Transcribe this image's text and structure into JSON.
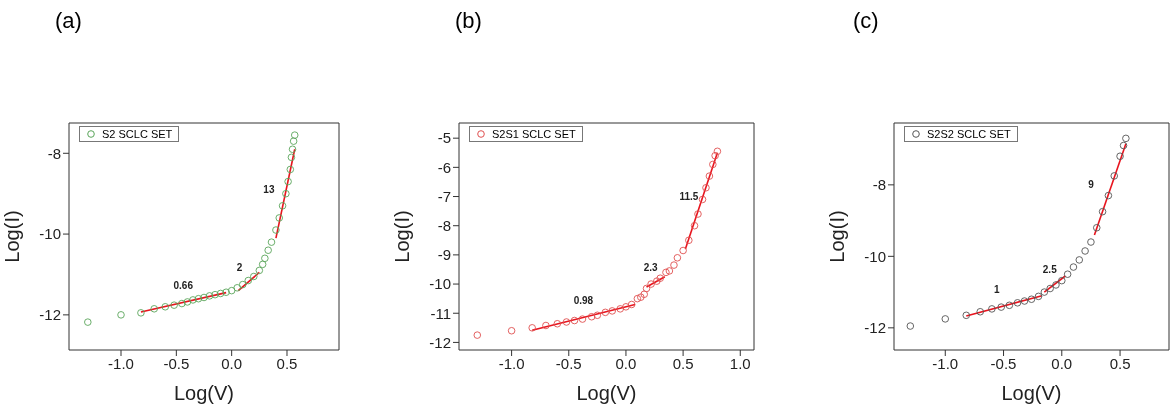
{
  "chart_data": [
    {
      "type": "scatter",
      "title": "(a)",
      "xlabel": "Log(V)",
      "ylabel": "Log(I)",
      "xlim": [
        -1.47,
        0.97
      ],
      "ylim": [
        -12.87,
        -7.25
      ],
      "xticks": [
        {
          "value": -1,
          "label": "-1.0"
        },
        {
          "value": -0.5,
          "label": "-0.5"
        },
        {
          "value": 0,
          "label": "0.0"
        },
        {
          "value": 0.5,
          "label": "0.5"
        }
      ],
      "yticks": [
        -12,
        -10,
        -8
      ],
      "legend": "top left",
      "series": [
        {
          "name": "S2 SCLC SET",
          "marker": "circle",
          "color": "#5aa55a",
          "x": [
            -1.3,
            -1.0,
            -0.82,
            -0.7,
            -0.6,
            -0.52,
            -0.45,
            -0.4,
            -0.35,
            -0.3,
            -0.25,
            -0.2,
            -0.15,
            -0.1,
            -0.05,
            0,
            0.05,
            0.1,
            0.15,
            0.2,
            0.25,
            0.28,
            0.3,
            0.33,
            0.36,
            0.4,
            0.43,
            0.46,
            0.49,
            0.51,
            0.53,
            0.54,
            0.55,
            0.56,
            0.57
          ],
          "values": [
            -12.18,
            -12.0,
            -11.95,
            -11.85,
            -11.8,
            -11.76,
            -11.72,
            -11.68,
            -11.63,
            -11.6,
            -11.57,
            -11.53,
            -11.5,
            -11.47,
            -11.44,
            -11.4,
            -11.33,
            -11.25,
            -11.15,
            -11.05,
            -10.9,
            -10.75,
            -10.6,
            -10.4,
            -10.2,
            -9.9,
            -9.6,
            -9.3,
            -9.0,
            -8.7,
            -8.4,
            -8.1,
            -7.9,
            -7.7,
            -7.55
          ]
        },
        {
          "type": "line",
          "color": "#e8141e",
          "x": [
            -0.82,
            -0.05
          ],
          "values": [
            -11.93,
            -11.45
          ]
        },
        {
          "type": "line",
          "color": "#e8141e",
          "x": [
            0.06,
            0.25
          ],
          "values": [
            -11.4,
            -10.95
          ]
        },
        {
          "type": "line",
          "color": "#e8141e",
          "x": [
            0.4,
            0.57
          ],
          "values": [
            -10.1,
            -7.9
          ]
        }
      ],
      "annotations": [
        "0.66",
        "2",
        "13"
      ]
    },
    {
      "type": "scatter",
      "title": "(b)",
      "xlabel": "Log(V)",
      "ylabel": "Log(I)",
      "xlim": [
        -1.46,
        1.12
      ],
      "ylim": [
        -12.26,
        -4.48
      ],
      "xticks": [
        {
          "value": -1,
          "label": "-1.0"
        },
        {
          "value": -0.5,
          "label": "-0.5"
        },
        {
          "value": 0,
          "label": "0.0"
        },
        {
          "value": 0.5,
          "label": "0.5"
        },
        {
          "value": 1,
          "label": "1.0"
        }
      ],
      "yticks": [
        -12,
        -11,
        -10,
        -9,
        -8,
        -7,
        -6,
        -5
      ],
      "legend": "top left",
      "series": [
        {
          "name": "S2S1 SCLC SET",
          "marker": "circle",
          "color": "#e05050",
          "x": [
            -1.3,
            -1.0,
            -0.82,
            -0.7,
            -0.6,
            -0.52,
            -0.45,
            -0.38,
            -0.3,
            -0.25,
            -0.18,
            -0.12,
            -0.05,
            0,
            0.05,
            0.1,
            0.13,
            0.16,
            0.18,
            0.22,
            0.27,
            0.3,
            0.35,
            0.38,
            0.42,
            0.45,
            0.5,
            0.55,
            0.6,
            0.63,
            0.67,
            0.7,
            0.73,
            0.76,
            0.78,
            0.8
          ],
          "values": [
            -11.75,
            -11.6,
            -11.5,
            -11.42,
            -11.36,
            -11.3,
            -11.25,
            -11.2,
            -11.12,
            -11.07,
            -10.97,
            -10.92,
            -10.85,
            -10.78,
            -10.7,
            -10.5,
            -10.45,
            -10.35,
            -10.15,
            -10.0,
            -9.9,
            -9.8,
            -9.6,
            -9.55,
            -9.35,
            -9.1,
            -8.85,
            -8.5,
            -8.0,
            -7.6,
            -7.1,
            -6.7,
            -6.3,
            -5.9,
            -5.6,
            -5.45
          ]
        },
        {
          "type": "line",
          "color": "#e8141e",
          "x": [
            -0.82,
            0.08
          ],
          "values": [
            -11.58,
            -10.7
          ]
        },
        {
          "type": "line",
          "color": "#e8141e",
          "x": [
            0.18,
            0.34
          ],
          "values": [
            -10.1,
            -9.75
          ]
        },
        {
          "type": "line",
          "color": "#e8141e",
          "x": [
            0.52,
            0.8
          ],
          "values": [
            -8.8,
            -5.5
          ]
        }
      ],
      "annotations": [
        "0.98",
        "2.3",
        "11.5"
      ]
    },
    {
      "type": "scatter",
      "title": "(c)",
      "xlabel": "Log(V)",
      "ylabel": "Log(I)",
      "xlim": [
        -1.44,
        0.92
      ],
      "ylim": [
        -12.62,
        -6.27
      ],
      "xticks": [
        {
          "value": -1,
          "label": "-1.0"
        },
        {
          "value": -0.5,
          "label": "-0.5"
        },
        {
          "value": 0,
          "label": "0.0"
        },
        {
          "value": 0.5,
          "label": "0.5"
        }
      ],
      "yticks": [
        -12,
        -10,
        -8
      ],
      "legend": "top left",
      "series": [
        {
          "name": "S2S2 SCLC SET",
          "marker": "circle",
          "color": "#555555",
          "x": [
            -1.3,
            -1.0,
            -0.82,
            -0.7,
            -0.6,
            -0.52,
            -0.45,
            -0.38,
            -0.32,
            -0.26,
            -0.2,
            -0.15,
            -0.1,
            -0.05,
            0,
            0.05,
            0.1,
            0.15,
            0.2,
            0.25,
            0.3,
            0.35,
            0.4,
            0.45,
            0.5,
            0.53,
            0.55
          ],
          "values": [
            -11.95,
            -11.75,
            -11.65,
            -11.55,
            -11.47,
            -11.42,
            -11.37,
            -11.3,
            -11.25,
            -11.2,
            -11.12,
            -11.0,
            -10.9,
            -10.8,
            -10.68,
            -10.5,
            -10.3,
            -10.1,
            -9.85,
            -9.6,
            -9.2,
            -8.75,
            -8.3,
            -7.75,
            -7.2,
            -6.9,
            -6.7
          ]
        },
        {
          "type": "line",
          "color": "#e8141e",
          "x": [
            -0.82,
            -0.17
          ],
          "values": [
            -11.67,
            -11.1
          ]
        },
        {
          "type": "line",
          "color": "#e8141e",
          "x": [
            -0.15,
            0.03
          ],
          "values": [
            -11.0,
            -10.55
          ]
        },
        {
          "type": "line",
          "color": "#e8141e",
          "x": [
            0.28,
            0.55
          ],
          "values": [
            -9.4,
            -6.85
          ]
        }
      ],
      "annotations": [
        "1",
        "2.5",
        "9"
      ]
    }
  ]
}
